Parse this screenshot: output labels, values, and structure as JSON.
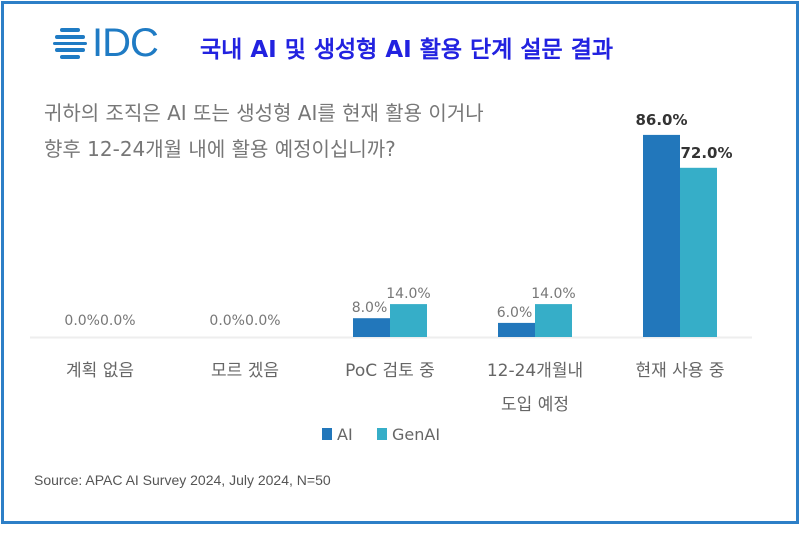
{
  "logo": {
    "text": "IDC"
  },
  "title": "국내 AI 및 생성형 AI 활용 단계 설문 결과",
  "question": [
    "귀하의 조직은 AI 또는 생성형 AI를 현재 활용 이거나",
    "향후 12-24개월 내에 활용 예정이십니까?"
  ],
  "source": "Source: APAC AI Survey 2024, July 2024, N=50",
  "colors": {
    "AI": "#2277bb",
    "GenAI": "#36aec8",
    "frame": "#2d7fc7",
    "title": "#2222e0"
  },
  "chart_data": {
    "type": "bar",
    "categories": [
      [
        "계획 없음"
      ],
      [
        "모르 겠음"
      ],
      [
        "PoC 검토 중"
      ],
      [
        "12-24개월내",
        "도입 예정"
      ],
      [
        "현재 사용 중"
      ]
    ],
    "series": [
      {
        "name": "AI",
        "values": [
          0.0,
          0.0,
          8.0,
          6.0,
          86.0
        ],
        "labels": [
          "0.0%",
          "0.0%",
          "8.0%",
          "6.0%",
          "86.0%"
        ]
      },
      {
        "name": "GenAI",
        "values": [
          0.0,
          0.0,
          14.0,
          14.0,
          72.0
        ],
        "labels": [
          "0.0%",
          "0.0%",
          "14.0%",
          "14.0%",
          "72.0%"
        ]
      }
    ],
    "legend": "bottom",
    "grid": false,
    "ylim": [
      0,
      100
    ]
  }
}
